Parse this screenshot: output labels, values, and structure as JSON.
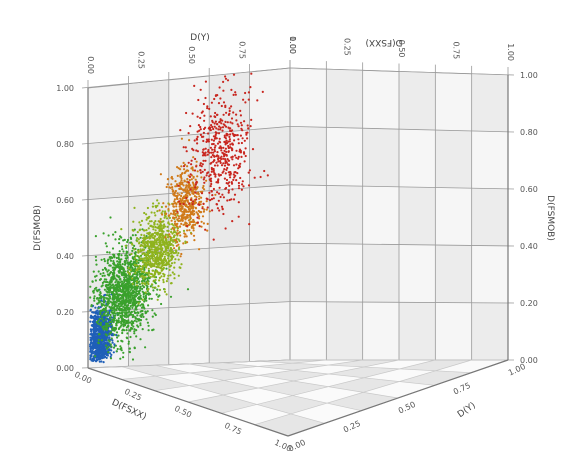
{
  "chart_data": {
    "type": "scatter",
    "projection": "3d",
    "title": "",
    "axes": {
      "x": {
        "label": "D(FSXX)",
        "range": [
          0,
          1.0
        ],
        "ticks": [
          "0.00",
          "0.25",
          "0.50",
          "0.75",
          "1.00"
        ]
      },
      "y": {
        "label": "D(Y)",
        "range": [
          0,
          1.0
        ],
        "ticks": [
          "0.00",
          "0.25",
          "0.50",
          "0.75",
          "1.00"
        ]
      },
      "z": {
        "label": "D(FSMOB)",
        "range": [
          0,
          1.0
        ],
        "ticks": [
          "0.00",
          "0.20",
          "0.40",
          "0.60",
          "0.80",
          "1.00"
        ]
      },
      "z_right": {
        "label": "D(FSMOB)",
        "ticks": [
          "0.00",
          "0.20",
          "0.40",
          "0.60",
          "0.80",
          "1.00"
        ]
      },
      "top_left": {
        "label": "D(Y)",
        "ticks": [
          "0.00",
          "0.25",
          "0.50",
          "0.75",
          "1.00"
        ]
      },
      "top_right": {
        "label": "D(FSXX)",
        "ticks": [
          "0.00",
          "0.25",
          "0.50",
          "0.75",
          "1.00"
        ]
      }
    },
    "grid": true,
    "legend": "none",
    "color_scale": [
      "#1f5fb8",
      "#3aa12d",
      "#8fb31e",
      "#d07a1a",
      "#c8261f"
    ],
    "series": [
      {
        "color": "#1f5fb8",
        "centers": [
          [
            0.06,
            0.05,
            0.07
          ]
        ],
        "spread": [
          0.04,
          0.04,
          0.05
        ],
        "count": 900
      },
      {
        "color": "#3aa12d",
        "centers": [
          [
            0.18,
            0.15,
            0.2
          ]
        ],
        "spread": [
          0.09,
          0.09,
          0.08
        ],
        "count": 1300
      },
      {
        "color": "#8fb31e",
        "centers": [
          [
            0.33,
            0.3,
            0.32
          ]
        ],
        "spread": [
          0.07,
          0.07,
          0.06
        ],
        "count": 700
      },
      {
        "color": "#d07a1a",
        "centers": [
          [
            0.46,
            0.43,
            0.45
          ]
        ],
        "spread": [
          0.06,
          0.06,
          0.06
        ],
        "count": 450
      },
      {
        "color": "#c8261f",
        "centers": [
          [
            0.62,
            0.58,
            0.6
          ]
        ],
        "spread": [
          0.1,
          0.1,
          0.1
        ],
        "count": 500
      }
    ]
  }
}
